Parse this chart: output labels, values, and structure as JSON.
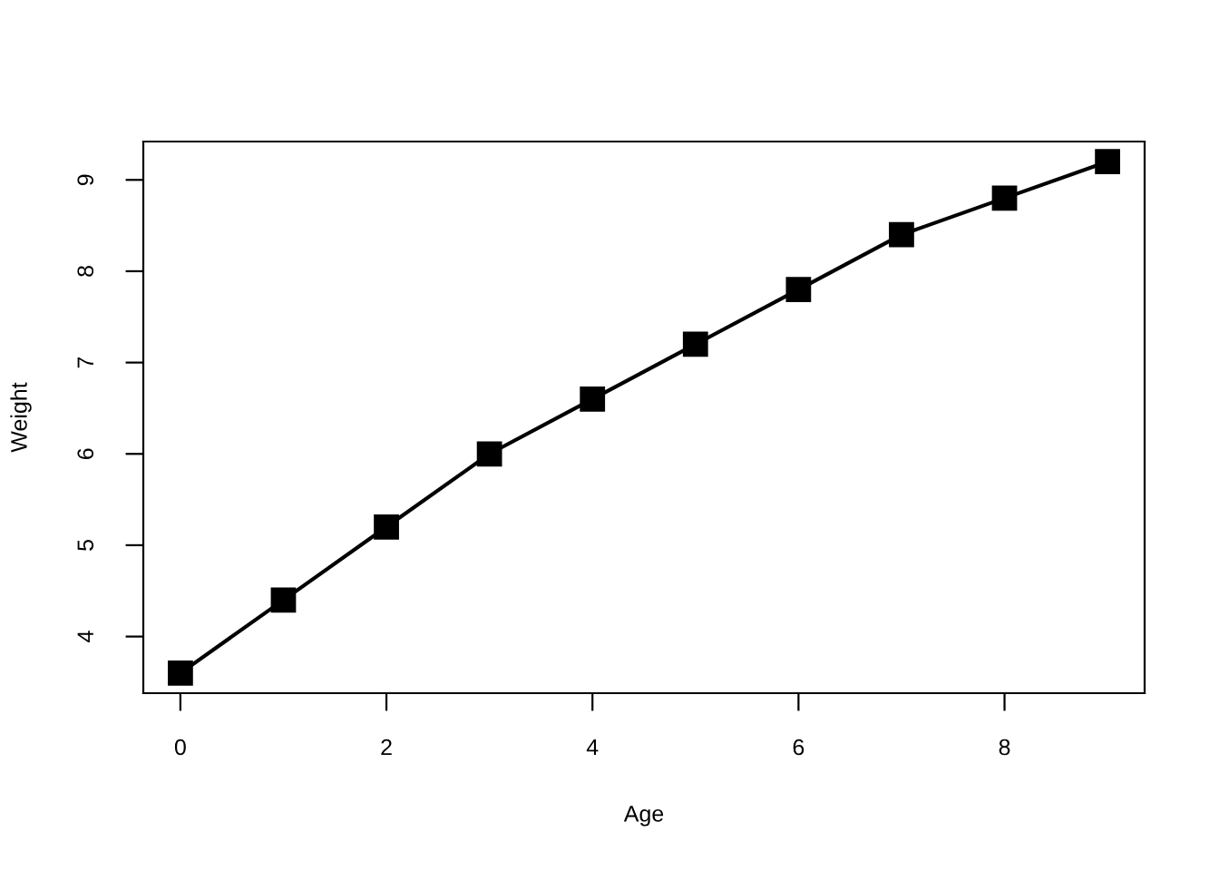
{
  "chart_data": {
    "type": "line",
    "xlabel": "Age",
    "ylabel": "Weight",
    "x": [
      0,
      1,
      2,
      3,
      4,
      5,
      6,
      7,
      8,
      9
    ],
    "series": [
      {
        "color": "#000000",
        "values": [
          3.6,
          4.4,
          5.2,
          6.0,
          6.6,
          7.2,
          7.8,
          8.4,
          8.8,
          9.2
        ]
      }
    ],
    "xlim": [
      -0.36,
      9.36
    ],
    "ylim": [
      3.38,
      9.42
    ],
    "xticks": [
      0,
      2,
      4,
      6,
      8
    ],
    "yticks": [
      4,
      5,
      6,
      7,
      8,
      9
    ],
    "marker": "square",
    "line_style": "solid"
  }
}
